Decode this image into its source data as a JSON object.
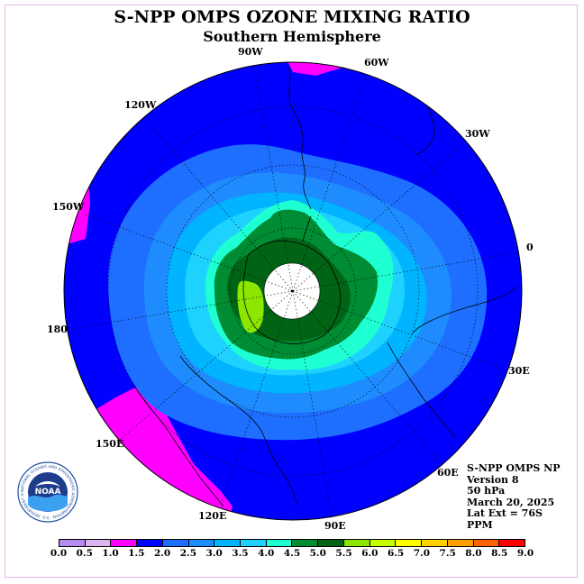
{
  "title": "S-NPP OMPS OZONE MIXING RATIO",
  "subtitle": "Southern Hemisphere",
  "longitude_labels": [
    {
      "text": "90W"
    },
    {
      "text": "60W"
    },
    {
      "text": "120W"
    },
    {
      "text": "30W"
    },
    {
      "text": "150W"
    },
    {
      "text": "0"
    },
    {
      "text": "180"
    },
    {
      "text": "30E"
    },
    {
      "text": "150E"
    },
    {
      "text": "60E"
    },
    {
      "text": "120E"
    },
    {
      "text": "90E"
    }
  ],
  "info": {
    "instrument": "S-NPP OMPS NP",
    "version": "Version 8",
    "level": "50 hPa",
    "date": "March 20, 2025",
    "lat_ext": "Lat Ext = 76S",
    "units": "PPM"
  },
  "logo": {
    "text": "NOAA",
    "ring_text": "NATIONAL OCEANIC AND ATMOSPHERIC ADMINISTRATION · U.S. DEPARTMENT OF COMMERCE"
  },
  "color_scale": {
    "ticks": [
      "0.0",
      "0.5",
      "1.0",
      "1.5",
      "2.0",
      "2.5",
      "3.0",
      "3.5",
      "4.0",
      "4.5",
      "5.0",
      "5.5",
      "6.0",
      "6.5",
      "7.0",
      "7.5",
      "8.0",
      "8.5",
      "9.0"
    ],
    "colors": [
      "#b48cf0",
      "#dcb4f0",
      "#ff00ff",
      "#0000ff",
      "#1e6eff",
      "#1e8cff",
      "#00b4ff",
      "#1ed2ff",
      "#1effd2",
      "#008c32",
      "#006414",
      "#8ce600",
      "#c8ff00",
      "#ffff00",
      "#ffd200",
      "#ffa000",
      "#ff6400",
      "#ff0000",
      "#825028"
    ]
  },
  "chart_data": {
    "type": "heatmap",
    "projection": "south polar stereographic",
    "title": "S-NPP OMPS OZONE MIXING RATIO",
    "subtitle": "Southern Hemisphere",
    "level_hpa": 50,
    "units": "PPM",
    "date": "March 20, 2025",
    "lat_extent_deg": -76,
    "value_range": [
      0.0,
      9.0
    ],
    "contour_interval": 0.5,
    "regions_ppm": [
      {
        "band": "1.0-1.5",
        "description": "edges near 150W, 60W and 150E-120E"
      },
      {
        "band": "1.5-2.0",
        "description": "outer ring"
      },
      {
        "band": "2.0-2.5"
      },
      {
        "band": "2.5-3.0"
      },
      {
        "band": "3.0-3.5"
      },
      {
        "band": "3.5-4.0"
      },
      {
        "band": "4.0-4.5"
      },
      {
        "band": "4.5-5.0"
      },
      {
        "band": "5.0-5.5",
        "description": "small patch near 150W-180"
      }
    ]
  }
}
